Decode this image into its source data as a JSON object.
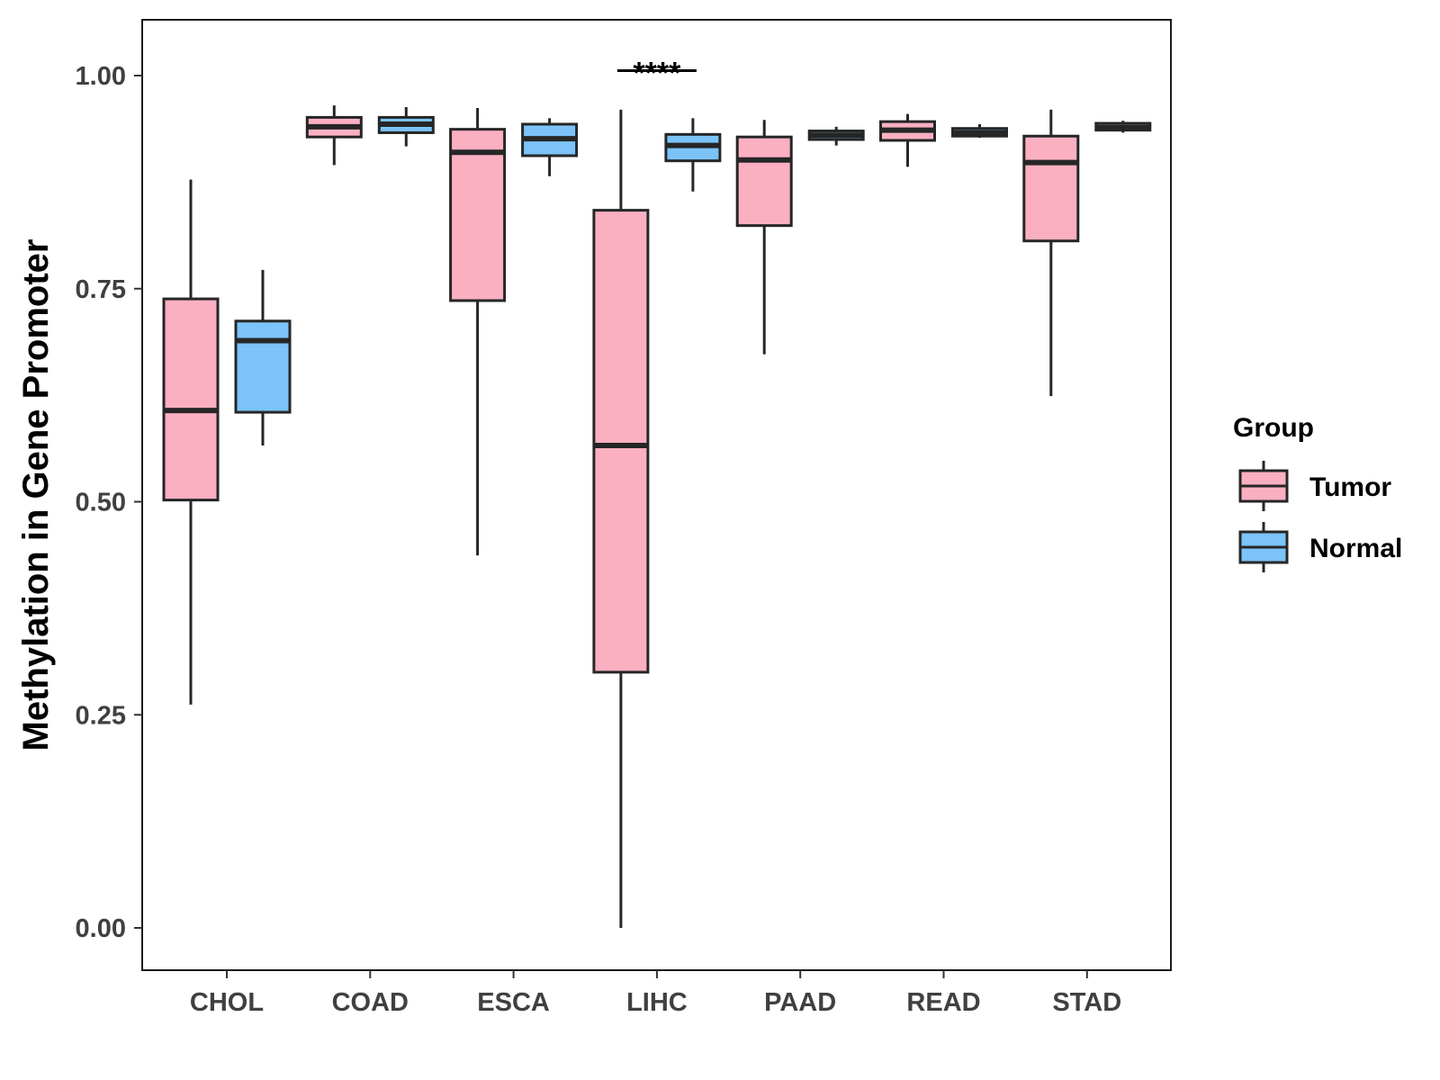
{
  "chart_data": {
    "type": "boxplot",
    "title": "",
    "xlabel": "",
    "ylabel": "Methylation in Gene Promoter",
    "ylim": [
      -0.05,
      1.065
    ],
    "yticks": [
      "0.00",
      "0.25",
      "0.50",
      "0.75",
      "1.00"
    ],
    "ytick_values": [
      0,
      0.25,
      0.5,
      0.75,
      1.0
    ],
    "categories": [
      "CHOL",
      "COAD",
      "ESCA",
      "LIHC",
      "PAAD",
      "READ",
      "STAD"
    ],
    "legend": {
      "title": "Group",
      "position": "right",
      "entries": [
        {
          "label": "Tumor",
          "color": "#fbb0c2"
        },
        {
          "label": "Normal",
          "color": "#7bc3f8"
        }
      ]
    },
    "series": [
      {
        "name": "Tumor",
        "color": "#fbb0c2",
        "boxes": [
          {
            "category": "CHOL",
            "min": 0.262,
            "q1": 0.502,
            "median": 0.607,
            "q3": 0.738,
            "max": 0.878
          },
          {
            "category": "COAD",
            "min": 0.895,
            "q1": 0.928,
            "median": 0.94,
            "q3": 0.951,
            "max": 0.965
          },
          {
            "category": "ESCA",
            "min": 0.437,
            "q1": 0.736,
            "median": 0.91,
            "q3": 0.937,
            "max": 0.962
          },
          {
            "category": "LIHC",
            "min": 0.0,
            "q1": 0.3,
            "median": 0.566,
            "q3": 0.842,
            "max": 0.96
          },
          {
            "category": "PAAD",
            "min": 0.673,
            "q1": 0.824,
            "median": 0.901,
            "q3": 0.928,
            "max": 0.948
          },
          {
            "category": "READ",
            "min": 0.893,
            "q1": 0.924,
            "median": 0.936,
            "q3": 0.946,
            "max": 0.955
          },
          {
            "category": "STAD",
            "min": 0.624,
            "q1": 0.806,
            "median": 0.898,
            "q3": 0.929,
            "max": 0.96
          }
        ]
      },
      {
        "name": "Normal",
        "color": "#7bc3f8",
        "boxes": [
          {
            "category": "CHOL",
            "min": 0.566,
            "q1": 0.605,
            "median": 0.689,
            "q3": 0.712,
            "max": 0.772
          },
          {
            "category": "COAD",
            "min": 0.917,
            "q1": 0.933,
            "median": 0.943,
            "q3": 0.951,
            "max": 0.963
          },
          {
            "category": "ESCA",
            "min": 0.882,
            "q1": 0.906,
            "median": 0.926,
            "q3": 0.943,
            "max": 0.95
          },
          {
            "category": "LIHC",
            "min": 0.864,
            "q1": 0.9,
            "median": 0.918,
            "q3": 0.931,
            "max": 0.95
          },
          {
            "category": "PAAD",
            "min": 0.918,
            "q1": 0.925,
            "median": 0.93,
            "q3": 0.935,
            "max": 0.94
          },
          {
            "category": "READ",
            "min": 0.927,
            "q1": 0.929,
            "median": 0.933,
            "q3": 0.938,
            "max": 0.943
          },
          {
            "category": "STAD",
            "min": 0.933,
            "q1": 0.936,
            "median": 0.939,
            "q3": 0.944,
            "max": 0.947
          }
        ]
      }
    ],
    "annotations": [
      {
        "category": "LIHC",
        "text": "****",
        "y": 1.01
      }
    ]
  }
}
